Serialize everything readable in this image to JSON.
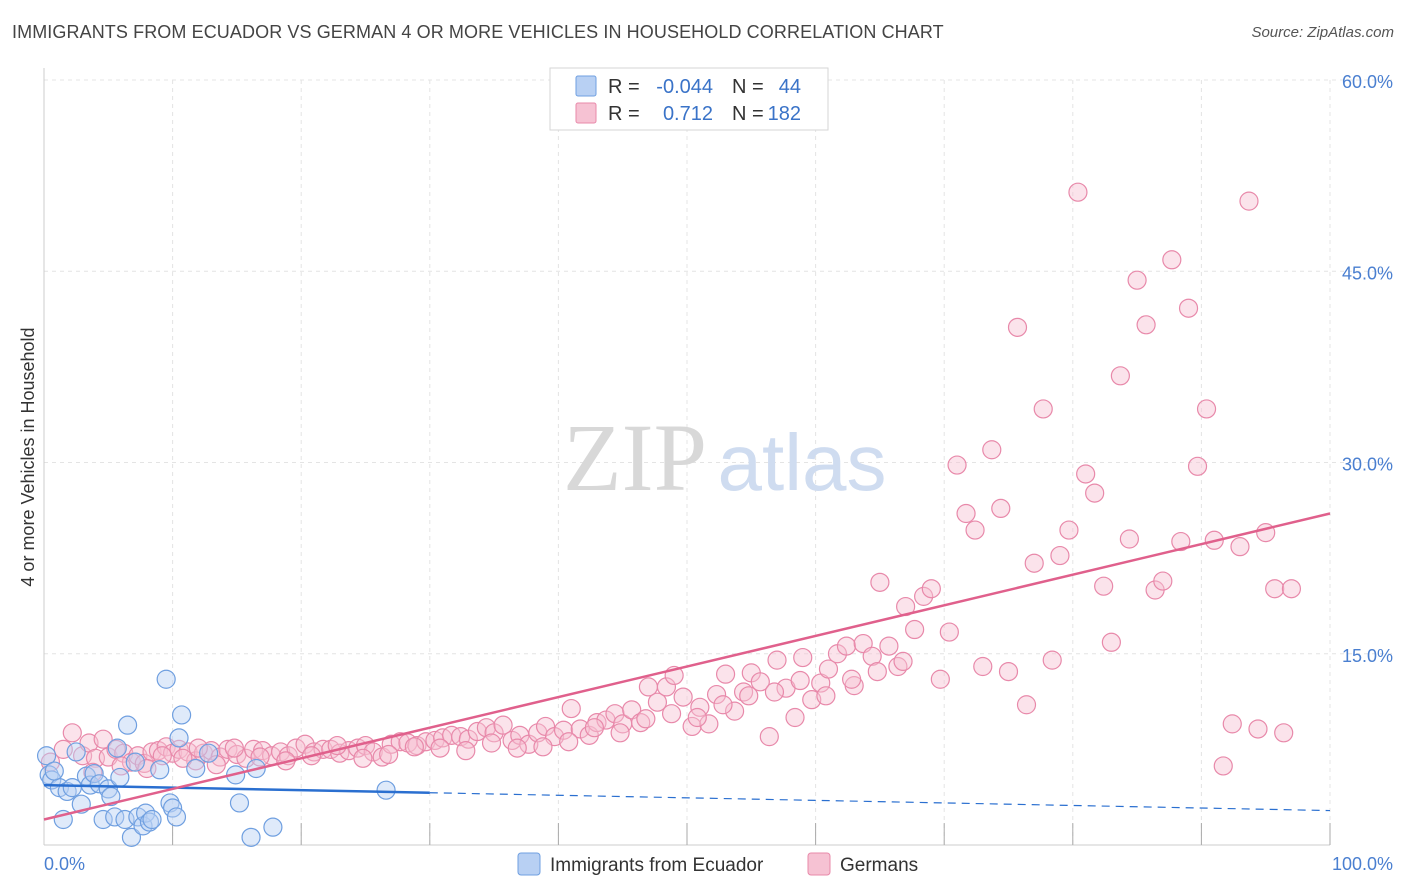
{
  "title": "IMMIGRANTS FROM ECUADOR VS GERMAN 4 OR MORE VEHICLES IN HOUSEHOLD CORRELATION CHART",
  "source": "Source: ZipAtlas.com",
  "watermark": {
    "zip": "ZIP",
    "atlas": "atlas"
  },
  "colors": {
    "blue": "#6f9fe0",
    "blue_fill": "#b8d0f3",
    "blue_line": "#2a6fd0",
    "pink": "#e889aa",
    "pink_fill": "#f6c2d3",
    "pink_line": "#e0608c",
    "grid": "#e4e4e4",
    "tick": "#4a7fd0"
  },
  "legend": {
    "rows": [
      {
        "r_label": "R =",
        "r_value": "-0.044",
        "n_label": "N =",
        "n_value": "44",
        "series": "blue"
      },
      {
        "r_label": "R =",
        "r_value": "0.712",
        "n_label": "N =",
        "n_value": "182",
        "series": "pink"
      }
    ]
  },
  "chart_data": {
    "type": "scatter",
    "xlabel": "",
    "ylabel": "4 or more Vehicles in Household",
    "xlim": [
      0,
      100
    ],
    "ylim": [
      0,
      60
    ],
    "x_ticks": [
      {
        "value": 0,
        "label": "0.0%"
      },
      {
        "value": 100,
        "label": "100.0%"
      }
    ],
    "y_ticks": [
      {
        "value": 15,
        "label": "15.0%"
      },
      {
        "value": 30,
        "label": "30.0%"
      },
      {
        "value": 45,
        "label": "45.0%"
      },
      {
        "value": 60,
        "label": "60.0%"
      }
    ],
    "legend_position": "top-center",
    "grid": true,
    "series": [
      {
        "name": "Immigrants from Ecuador",
        "color": "blue",
        "trend": {
          "x0": 0,
          "y0": 4.7,
          "x1": 30,
          "y1": 4.1,
          "dash_to_x": 100,
          "dash_to_y": 2.7
        },
        "points": [
          [
            0.2,
            7.0
          ],
          [
            0.4,
            5.5
          ],
          [
            0.6,
            5.1
          ],
          [
            1.5,
            2.0
          ],
          [
            1.2,
            4.5
          ],
          [
            1.8,
            4.2
          ],
          [
            2.2,
            4.5
          ],
          [
            2.5,
            7.3
          ],
          [
            2.9,
            3.2
          ],
          [
            3.3,
            5.4
          ],
          [
            3.6,
            4.7
          ],
          [
            3.9,
            5.6
          ],
          [
            4.3,
            4.8
          ],
          [
            4.6,
            2.0
          ],
          [
            5.0,
            4.4
          ],
          [
            5.2,
            3.8
          ],
          [
            5.5,
            2.2
          ],
          [
            5.7,
            7.6
          ],
          [
            5.9,
            5.3
          ],
          [
            6.3,
            2.0
          ],
          [
            6.5,
            9.4
          ],
          [
            6.8,
            0.6
          ],
          [
            7.1,
            6.5
          ],
          [
            7.3,
            2.2
          ],
          [
            7.7,
            1.5
          ],
          [
            7.9,
            2.5
          ],
          [
            8.2,
            1.8
          ],
          [
            8.4,
            2.0
          ],
          [
            9.0,
            5.9
          ],
          [
            9.5,
            13.0
          ],
          [
            9.8,
            3.3
          ],
          [
            10.0,
            2.9
          ],
          [
            10.3,
            2.2
          ],
          [
            10.5,
            8.4
          ],
          [
            10.7,
            10.2
          ],
          [
            11.8,
            6.0
          ],
          [
            12.8,
            7.2
          ],
          [
            14.9,
            5.5
          ],
          [
            15.2,
            3.3
          ],
          [
            16.1,
            0.6
          ],
          [
            16.5,
            6.0
          ],
          [
            17.8,
            1.4
          ],
          [
            26.6,
            4.3
          ],
          [
            0.8,
            5.8
          ]
        ]
      },
      {
        "name": "Germans",
        "color": "pink",
        "trend": {
          "x0": 0,
          "y0": 2.0,
          "x1": 100,
          "y1": 26.0
        },
        "points": [
          [
            0.5,
            6.5
          ],
          [
            1.5,
            7.5
          ],
          [
            2.2,
            8.8
          ],
          [
            3.0,
            7.0
          ],
          [
            3.5,
            8.0
          ],
          [
            4.0,
            6.8
          ],
          [
            4.6,
            8.3
          ],
          [
            5.0,
            6.9
          ],
          [
            5.6,
            7.5
          ],
          [
            6.2,
            7.2
          ],
          [
            6.8,
            6.5
          ],
          [
            7.3,
            7.0
          ],
          [
            7.8,
            6.4
          ],
          [
            8.4,
            7.3
          ],
          [
            8.9,
            7.4
          ],
          [
            9.5,
            7.7
          ],
          [
            10.0,
            7.2
          ],
          [
            10.5,
            7.5
          ],
          [
            11.2,
            7.3
          ],
          [
            11.8,
            6.6
          ],
          [
            12.4,
            7.2
          ],
          [
            13.0,
            7.4
          ],
          [
            13.7,
            6.9
          ],
          [
            14.3,
            7.5
          ],
          [
            15.0,
            7.1
          ],
          [
            15.7,
            6.8
          ],
          [
            16.3,
            7.5
          ],
          [
            17.0,
            7.4
          ],
          [
            17.7,
            7.0
          ],
          [
            18.4,
            7.3
          ],
          [
            19.0,
            7.0
          ],
          [
            19.6,
            7.6
          ],
          [
            20.3,
            7.9
          ],
          [
            21.0,
            7.3
          ],
          [
            21.7,
            7.5
          ],
          [
            22.3,
            7.5
          ],
          [
            23.0,
            7.2
          ],
          [
            23.7,
            7.4
          ],
          [
            24.4,
            7.6
          ],
          [
            25.0,
            7.8
          ],
          [
            25.6,
            7.3
          ],
          [
            26.3,
            6.9
          ],
          [
            27.0,
            7.9
          ],
          [
            27.7,
            8.1
          ],
          [
            28.3,
            8.0
          ],
          [
            29.0,
            7.8
          ],
          [
            29.7,
            8.1
          ],
          [
            30.4,
            8.2
          ],
          [
            31.0,
            8.4
          ],
          [
            31.7,
            8.6
          ],
          [
            32.4,
            8.5
          ],
          [
            33.0,
            8.3
          ],
          [
            33.7,
            8.9
          ],
          [
            34.4,
            9.2
          ],
          [
            35.0,
            8.8
          ],
          [
            35.7,
            9.4
          ],
          [
            36.4,
            8.2
          ],
          [
            37.0,
            8.6
          ],
          [
            37.7,
            7.9
          ],
          [
            38.4,
            8.8
          ],
          [
            39.0,
            9.3
          ],
          [
            39.7,
            8.5
          ],
          [
            40.4,
            9.0
          ],
          [
            41.0,
            10.7
          ],
          [
            41.7,
            9.1
          ],
          [
            42.4,
            8.6
          ],
          [
            43.0,
            9.6
          ],
          [
            43.7,
            9.8
          ],
          [
            44.4,
            10.3
          ],
          [
            45.0,
            9.5
          ],
          [
            45.7,
            10.6
          ],
          [
            46.4,
            9.6
          ],
          [
            47.0,
            12.4
          ],
          [
            47.7,
            11.2
          ],
          [
            48.4,
            12.4
          ],
          [
            49.0,
            13.3
          ],
          [
            49.7,
            11.6
          ],
          [
            50.4,
            9.3
          ],
          [
            51.0,
            10.8
          ],
          [
            51.7,
            9.5
          ],
          [
            52.3,
            11.8
          ],
          [
            53.0,
            13.4
          ],
          [
            53.7,
            10.5
          ],
          [
            54.4,
            12.0
          ],
          [
            55.0,
            13.5
          ],
          [
            55.7,
            12.8
          ],
          [
            56.4,
            8.5
          ],
          [
            57.0,
            14.5
          ],
          [
            57.7,
            12.3
          ],
          [
            58.4,
            10.0
          ],
          [
            59.0,
            14.7
          ],
          [
            59.7,
            11.4
          ],
          [
            60.4,
            12.7
          ],
          [
            61.0,
            13.8
          ],
          [
            61.7,
            15.0
          ],
          [
            62.4,
            15.6
          ],
          [
            63.0,
            12.5
          ],
          [
            63.7,
            15.8
          ],
          [
            64.4,
            14.8
          ],
          [
            65.0,
            20.6
          ],
          [
            65.7,
            15.6
          ],
          [
            66.4,
            14.0
          ],
          [
            67.0,
            18.7
          ],
          [
            67.7,
            16.9
          ],
          [
            68.4,
            19.5
          ],
          [
            69.0,
            20.1
          ],
          [
            69.7,
            13.0
          ],
          [
            70.4,
            16.7
          ],
          [
            71.0,
            29.8
          ],
          [
            71.7,
            26.0
          ],
          [
            72.4,
            24.7
          ],
          [
            73.0,
            14.0
          ],
          [
            73.7,
            31.0
          ],
          [
            74.4,
            26.4
          ],
          [
            75.0,
            13.6
          ],
          [
            75.7,
            40.6
          ],
          [
            76.4,
            11.0
          ],
          [
            77.0,
            22.1
          ],
          [
            77.7,
            34.2
          ],
          [
            78.4,
            14.5
          ],
          [
            79.0,
            22.7
          ],
          [
            79.7,
            24.7
          ],
          [
            80.4,
            51.2
          ],
          [
            81.0,
            29.1
          ],
          [
            81.7,
            27.6
          ],
          [
            82.4,
            20.3
          ],
          [
            83.0,
            15.9
          ],
          [
            83.7,
            36.8
          ],
          [
            84.4,
            24.0
          ],
          [
            85.0,
            44.3
          ],
          [
            85.7,
            40.8
          ],
          [
            86.4,
            20.0
          ],
          [
            87.0,
            20.7
          ],
          [
            87.7,
            45.9
          ],
          [
            88.4,
            23.8
          ],
          [
            89.0,
            42.1
          ],
          [
            89.7,
            29.7
          ],
          [
            90.4,
            34.2
          ],
          [
            91.0,
            23.9
          ],
          [
            91.7,
            6.2
          ],
          [
            92.4,
            9.5
          ],
          [
            93.0,
            23.4
          ],
          [
            93.7,
            50.5
          ],
          [
            94.4,
            9.1
          ],
          [
            95.0,
            24.5
          ],
          [
            95.7,
            20.1
          ],
          [
            96.4,
            8.8
          ],
          [
            97.0,
            20.1
          ],
          [
            3.8,
            5.7
          ],
          [
            6.0,
            6.2
          ],
          [
            8.0,
            6.0
          ],
          [
            9.2,
            7.0
          ],
          [
            10.8,
            6.8
          ],
          [
            12.0,
            7.6
          ],
          [
            13.4,
            6.3
          ],
          [
            14.8,
            7.6
          ],
          [
            16.8,
            6.9
          ],
          [
            18.8,
            6.6
          ],
          [
            20.8,
            7.0
          ],
          [
            22.8,
            7.8
          ],
          [
            24.8,
            6.8
          ],
          [
            26.8,
            7.1
          ],
          [
            28.8,
            7.7
          ],
          [
            30.8,
            7.6
          ],
          [
            32.8,
            7.4
          ],
          [
            34.8,
            8.0
          ],
          [
            36.8,
            7.6
          ],
          [
            38.8,
            7.7
          ],
          [
            40.8,
            8.1
          ],
          [
            42.8,
            9.2
          ],
          [
            44.8,
            8.8
          ],
          [
            46.8,
            9.9
          ],
          [
            48.8,
            10.3
          ],
          [
            50.8,
            10.0
          ],
          [
            52.8,
            11.0
          ],
          [
            54.8,
            11.7
          ],
          [
            56.8,
            12.0
          ],
          [
            58.8,
            12.9
          ],
          [
            60.8,
            11.7
          ],
          [
            62.8,
            13.0
          ],
          [
            64.8,
            13.6
          ],
          [
            66.8,
            14.4
          ]
        ]
      }
    ]
  }
}
